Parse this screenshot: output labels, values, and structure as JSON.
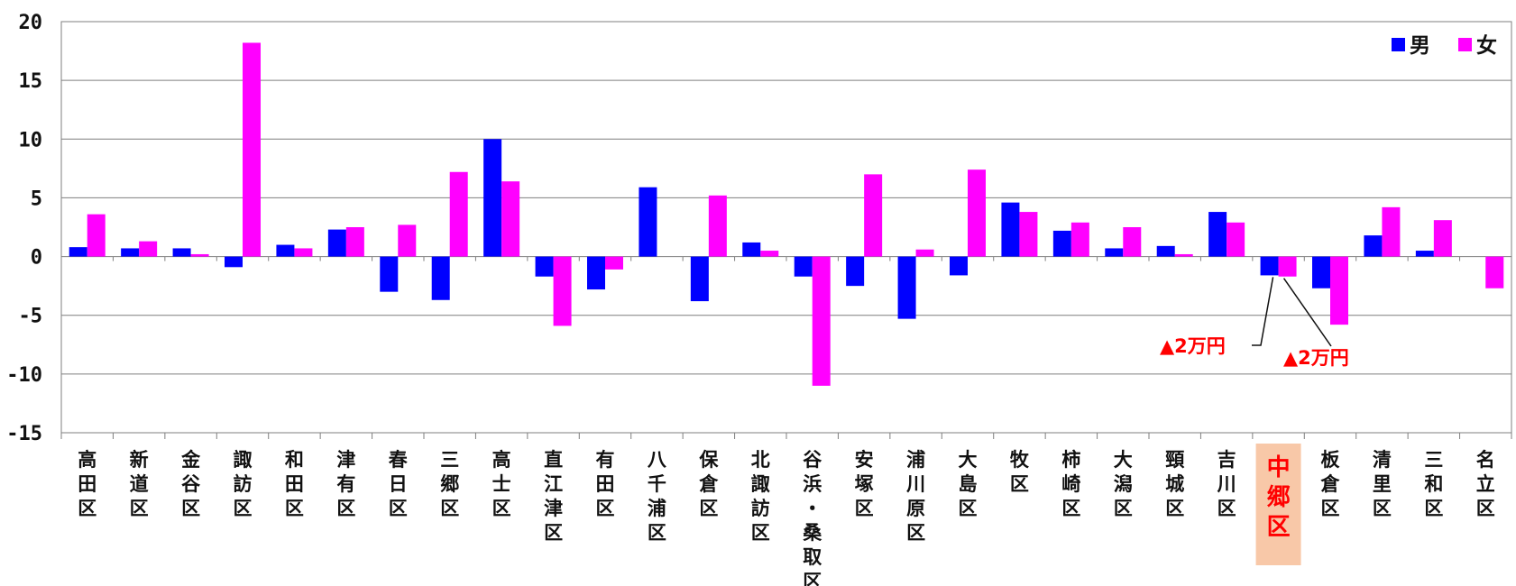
{
  "chart_data": {
    "type": "bar",
    "categories": [
      "高田区",
      "新道区",
      "金谷区",
      "諏訪区",
      "和田区",
      "津有区",
      "春日区",
      "三郷区",
      "高士区",
      "直江津区",
      "有田区",
      "八千浦区",
      "保倉区",
      "北諏訪区",
      "谷浜・桑取区",
      "安塚区",
      "浦川原区",
      "大島区",
      "牧区",
      "柿崎区",
      "大潟区",
      "頸城区",
      "吉川区",
      "中郷区",
      "板倉区",
      "清里区",
      "三和区",
      "名立区"
    ],
    "series": [
      {
        "name": "男",
        "color": "#0000ff",
        "values": [
          0.8,
          0.7,
          0.7,
          -0.9,
          1.0,
          2.3,
          -3.0,
          -3.7,
          10.0,
          -1.7,
          -2.8,
          5.9,
          -3.8,
          1.2,
          -1.7,
          -2.5,
          -5.3,
          -1.6,
          4.6,
          2.2,
          0.7,
          0.9,
          3.8,
          -1.6,
          -2.7,
          1.8,
          0.5,
          0.0
        ]
      },
      {
        "name": "女",
        "color": "#ff00ff",
        "values": [
          3.6,
          1.3,
          0.2,
          18.2,
          0.7,
          2.5,
          2.7,
          7.2,
          6.4,
          -5.9,
          -1.1,
          0.0,
          5.2,
          0.5,
          -11.0,
          7.0,
          0.6,
          7.4,
          3.8,
          2.9,
          2.5,
          0.2,
          2.9,
          -1.7,
          -5.8,
          4.2,
          3.1,
          -2.7
        ]
      }
    ],
    "ylim": [
      -15,
      20
    ],
    "yticks": [
      "20",
      "15",
      "10",
      "5",
      "0",
      "-5",
      "-10",
      "-15"
    ],
    "ytick_values": [
      20,
      15,
      10,
      5,
      0,
      -5,
      -10,
      -15
    ],
    "grid": true,
    "legend": "top-right",
    "highlight_category": "中郷区",
    "highlight_color": "#f8c8a8",
    "annotations": [
      {
        "text": "▲2万円",
        "category": "中郷区",
        "series": "男",
        "color": "#ff0000"
      },
      {
        "text": "▲2万円",
        "category": "中郷区",
        "series": "女",
        "color": "#ff0000"
      }
    ]
  }
}
